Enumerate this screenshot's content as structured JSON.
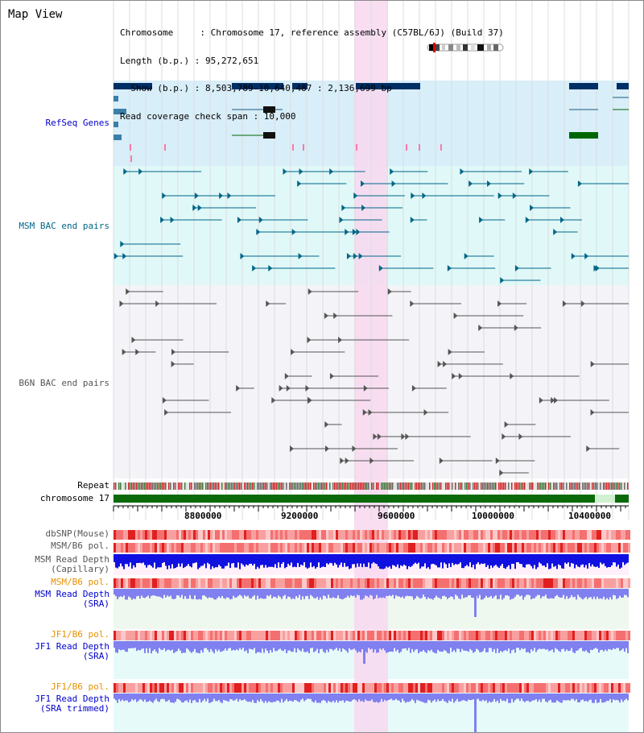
{
  "window": {
    "title": "Map View"
  },
  "info": {
    "lines": [
      "Chromosome     : Chromosome 17, reference assembly (C57BL/6J) (Build 37)",
      "Length (b.p.) : 95,272,651",
      "  Show (b.p.) : 8,503,789-10,640,487 : 2,136,699 bp",
      "Read coverage check span : 10,000"
    ]
  },
  "tracks": {
    "refseq": "RefSeq Genes",
    "msm_bac": "MSM BAC end pairs",
    "b6n_bac": "B6N BAC end pairs",
    "repeat": "Repeat",
    "chromosome": "chromosome 17",
    "dbsnp": "dbSNP(Mouse)",
    "msm_b6_pol": "MSM/B6 pol.",
    "msm_depth_cap_1": "MSM Read Depth",
    "msm_depth_cap_2": "(Capillary)",
    "msm_b6_pol_2": "MSM/B6 pol.",
    "msm_depth_sra_1": "MSM Read Depth",
    "msm_depth_sra_2": "(SRA)",
    "jf1_b6_pol": "JF1/B6 pol.",
    "jf1_depth_sra_1": "JF1 Read Depth",
    "jf1_depth_sra_2": "(SRA)",
    "jf1_b6_pol_2": "JF1/B6 pol.",
    "jf1_depth_trim_1": "JF1 Read Depth",
    "jf1_depth_trim_2": "(SRA trimmed)"
  },
  "axis": {
    "ticks": [
      "8800000",
      "9200000",
      "9600000",
      "10000000",
      "10400000"
    ]
  },
  "colors": {
    "highlight": "#f8d8f0",
    "refseq_bg": "#d8eef9",
    "msm_bg": "#e0f8f8",
    "b6n_bg": "#f4f4f8",
    "gene_dark": "#002f66",
    "gene_green": "#006600",
    "bac_teal": "#006688",
    "bac_grey": "#555555"
  }
}
